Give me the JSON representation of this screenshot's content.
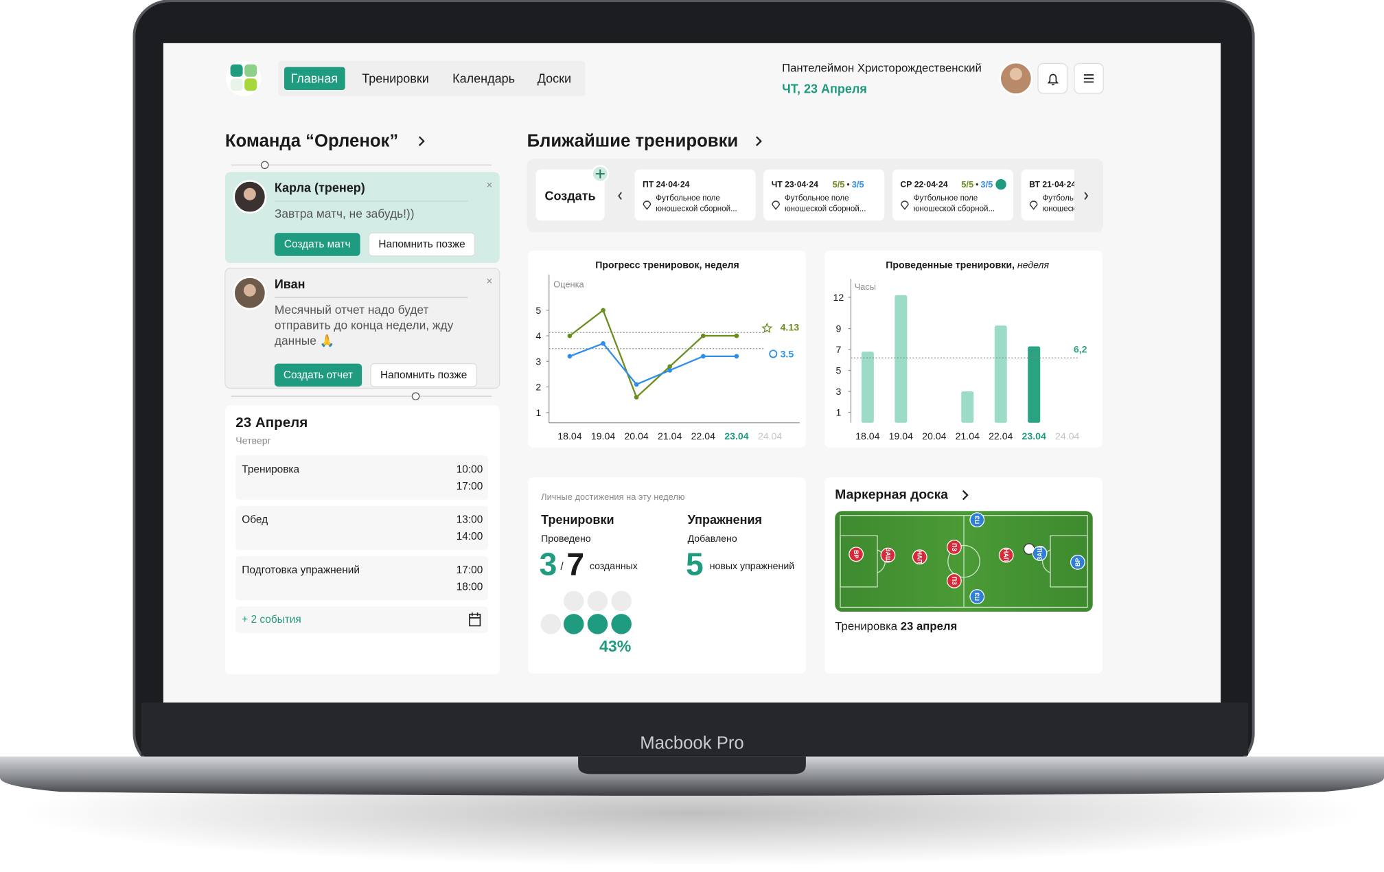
{
  "device": "Macbook Pro",
  "header": {
    "nav": [
      "Главная",
      "Тренировки",
      "Календарь",
      "Доски"
    ],
    "user_name": "Пантелеймон Христорождественский",
    "date": "ЧТ, 23 Апреля"
  },
  "team": {
    "title": "Команда “Орленок”",
    "messages": [
      {
        "author": "Карла (тренер)",
        "text_lines": [
          "Завтра матч, не забудь!))"
        ],
        "actions": [
          "Создать матч",
          "Напомнить позже"
        ]
      },
      {
        "author": "Иван",
        "text_lines": [
          "Месячный отчет надо будет",
          "отправить до конца недели, жду",
          "данные 🙏"
        ],
        "actions": [
          "Создать отчет",
          "Напомнить позже"
        ]
      }
    ]
  },
  "schedule": {
    "date": "23 Апреля",
    "weekday": "Четверг",
    "events": [
      {
        "name": "Тренировка",
        "times": [
          "10:00",
          "17:00"
        ]
      },
      {
        "name": "Обед",
        "times": [
          "13:00",
          "14:00"
        ]
      },
      {
        "name": "Подготовка упражнений",
        "times": [
          "17:00",
          "18:00"
        ]
      }
    ],
    "more": "+ 2 события"
  },
  "trainings": {
    "title": "Ближайшие тренировки",
    "create": "Создать",
    "cards": [
      {
        "date": "ПТ 24·04·24",
        "place": [
          "Футбольное поле",
          "юношеской сборной..."
        ]
      },
      {
        "date": "ЧТ 23·04·24",
        "score": [
          "5/5",
          "3/5"
        ],
        "place": [
          "Футбольное поле",
          "юношеской сборной..."
        ]
      },
      {
        "date": "СР 22·04·24",
        "score": [
          "5/5",
          "3/5"
        ],
        "place": [
          "Футбольное поле",
          "юношеской сборной..."
        ]
      },
      {
        "date": "ВТ 21·04·24",
        "place": [
          "Футбольное поле",
          "юношеской сборной..."
        ]
      }
    ]
  },
  "chart_data": [
    {
      "type": "line",
      "title": "Прогресс тренировок, неделя",
      "y_label": "Оценка",
      "categories": [
        "18.04",
        "19.04",
        "20.04",
        "21.04",
        "22.04",
        "23.04",
        "24.04"
      ],
      "series": [
        {
          "color": "#6b8e1e",
          "values": [
            4,
            5,
            1.6,
            2.8,
            4,
            4,
            null
          ],
          "average": 4.13
        },
        {
          "color": "#2f8fe8",
          "values": [
            3.2,
            3.7,
            2.1,
            2.65,
            3.2,
            3.2,
            null
          ],
          "average": 3.5
        }
      ],
      "ylim": [
        0.6,
        6.4
      ],
      "yticks": [
        1,
        2,
        3,
        4,
        5
      ]
    },
    {
      "type": "bar",
      "title": "Проведенные тренировки,",
      "subtitle": "неделя",
      "y_label": "Часы",
      "categories": [
        "18.04",
        "19.04",
        "20.04",
        "21.04",
        "22.04",
        "23.04",
        "24.04"
      ],
      "values": [
        6.8,
        12.2,
        null,
        3,
        9.3,
        7.3,
        null
      ],
      "color": "#9ddbc9",
      "highlight_color": "#2aa383",
      "average": {
        "value": 6.2,
        "label": "6,2"
      },
      "ylim": [
        0,
        13
      ],
      "yticks": [
        1,
        3,
        5,
        7,
        9,
        12
      ]
    }
  ],
  "achievements": {
    "title": "Личные достижения на эту неделю",
    "trainings": {
      "title": "Тренировки",
      "label": "Проведено",
      "done": 3,
      "separator": "/",
      "total": 7,
      "unit": "созданных",
      "percent": {
        "value": 43,
        "label": "43%"
      }
    },
    "exercises": {
      "title": "Упражнения",
      "label": "Добавлено",
      "count": 5,
      "unit": "новых упражнений"
    }
  },
  "board": {
    "title": "Маркерная доска",
    "caption": "Тренировка",
    "caption_date": "23 апреля",
    "players": [
      {
        "label": "ВР",
        "team": "red"
      },
      {
        "label": "ЗАЩ",
        "team": "red"
      },
      {
        "label": "НАП",
        "team": "red"
      },
      {
        "label": "ПЗ",
        "team": "red"
      },
      {
        "label": "ПЗ",
        "team": "red"
      },
      {
        "label": "НАП",
        "team": "red"
      },
      {
        "label": "ПЗ",
        "team": "blue"
      },
      {
        "label": "ПЗ",
        "team": "blue"
      },
      {
        "label": "ЗАЩ",
        "team": "blue"
      },
      {
        "label": "ВР",
        "team": "blue"
      }
    ]
  }
}
